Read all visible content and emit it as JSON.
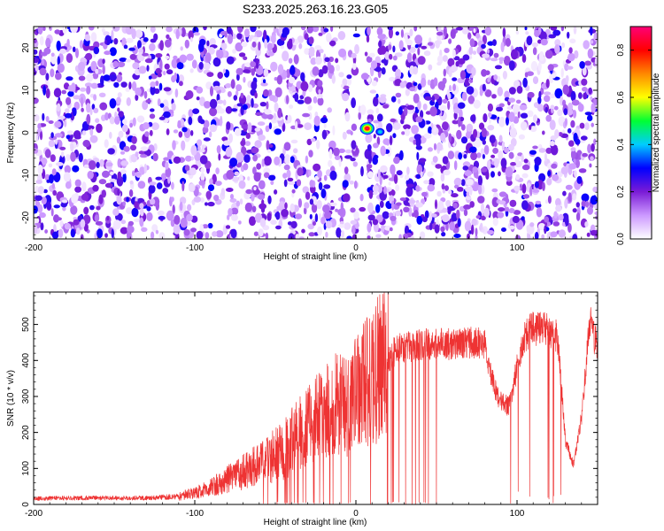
{
  "title": "S233.2025.263.16.23.G05",
  "chart_data": [
    {
      "type": "heatmap",
      "title": "",
      "xlabel": "Height of straight line (km)",
      "ylabel": "Frequency (Hz)",
      "xlim": [
        -200,
        150
      ],
      "ylim": [
        -25,
        25
      ],
      "x_ticks": [
        -200,
        -100,
        0,
        100
      ],
      "y_ticks": [
        20,
        10,
        0,
        -10,
        -20
      ],
      "colorbar": {
        "label": "Normalized spectral amplitude",
        "range": [
          0,
          0.9
        ],
        "ticks": [
          0.0,
          0.2,
          0.4,
          0.6,
          0.8
        ],
        "colors": [
          "#ffffff",
          "#cc99ff",
          "#7a1bd6",
          "#0000ff",
          "#00ccff",
          "#00ff33",
          "#ffff00",
          "#ff8800",
          "#ff0000",
          "#ff0077"
        ]
      },
      "noise_level": [
        0.02,
        0.3
      ],
      "peak": {
        "x": 7,
        "y": 1,
        "value": 0.9
      },
      "secondary_peaks": [
        {
          "x": 15,
          "y": 0.2,
          "value": 0.42
        }
      ]
    },
    {
      "type": "line",
      "title": "",
      "xlabel": "Height of straight line (km)",
      "ylabel": "SNR (10 * v/v)",
      "xlim": [
        -200,
        150
      ],
      "ylim": [
        0,
        590
      ],
      "x_ticks": [
        -200,
        -100,
        0,
        100
      ],
      "y_ticks": [
        0,
        100,
        200,
        300,
        400,
        500
      ],
      "color": "#ee3333",
      "trend": {
        "x": [
          -200,
          -175,
          -130,
          -110,
          -95,
          -80,
          -60,
          -45,
          -30,
          -15,
          0,
          15,
          25,
          40,
          60,
          75,
          80,
          85,
          88,
          95,
          100,
          105,
          110,
          115,
          125,
          128,
          130,
          135,
          140,
          145,
          150
        ],
        "y": [
          16,
          18,
          18,
          22,
          38,
          70,
          110,
          150,
          215,
          270,
          300,
          385,
          430,
          445,
          445,
          450,
          440,
          340,
          300,
          270,
          380,
          470,
          490,
          490,
          470,
          300,
          180,
          110,
          240,
          510,
          430
        ]
      }
    }
  ]
}
